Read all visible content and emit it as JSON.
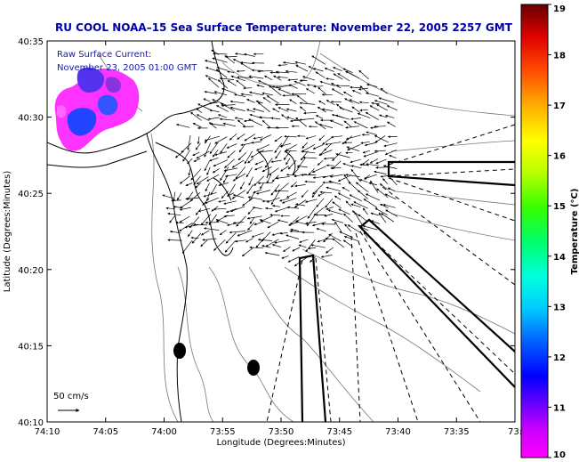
{
  "title": "RU COOL  NOAA–15  Sea Surface Temperature:  November 22, 2005 2257 GMT",
  "inset": {
    "line1": "Raw Surface Current:",
    "line2": "November 23, 2005 01:00 GMT"
  },
  "scale_label": "50 cm/s",
  "x_axis": {
    "label": "Longitude (Degrees:Minutes)",
    "ticks": [
      "74:10",
      "74:05",
      "74:00",
      "73:55",
      "73:50",
      "73:45",
      "73:40",
      "73:35",
      "73:3"
    ]
  },
  "y_axis": {
    "label": "Latitude (Degrees:Minutes)",
    "ticks": [
      "40:35",
      "40:30",
      "40:25",
      "40:20",
      "40:15",
      "40:10"
    ]
  },
  "colorbar": {
    "label": "Temperature (°C)",
    "ticks": [
      "19",
      "18",
      "17",
      "16",
      "15",
      "14",
      "13",
      "12",
      "11",
      "10"
    ],
    "range": [
      10,
      19
    ],
    "colors": [
      "#ff00ff",
      "#8800cc",
      "#0000ff",
      "#0088ff",
      "#00ffff",
      "#00ff88",
      "#00ff00",
      "#aaff00",
      "#ffff00",
      "#ffaa00",
      "#ff5500",
      "#ff0000",
      "#aa0000",
      "#660000"
    ]
  },
  "colors": {
    "title": "#0000aa",
    "inset_text": "#1a1aa8",
    "sst_patch_warm": "#ff33ff",
    "sst_patch_cold": "#2244ff"
  }
}
